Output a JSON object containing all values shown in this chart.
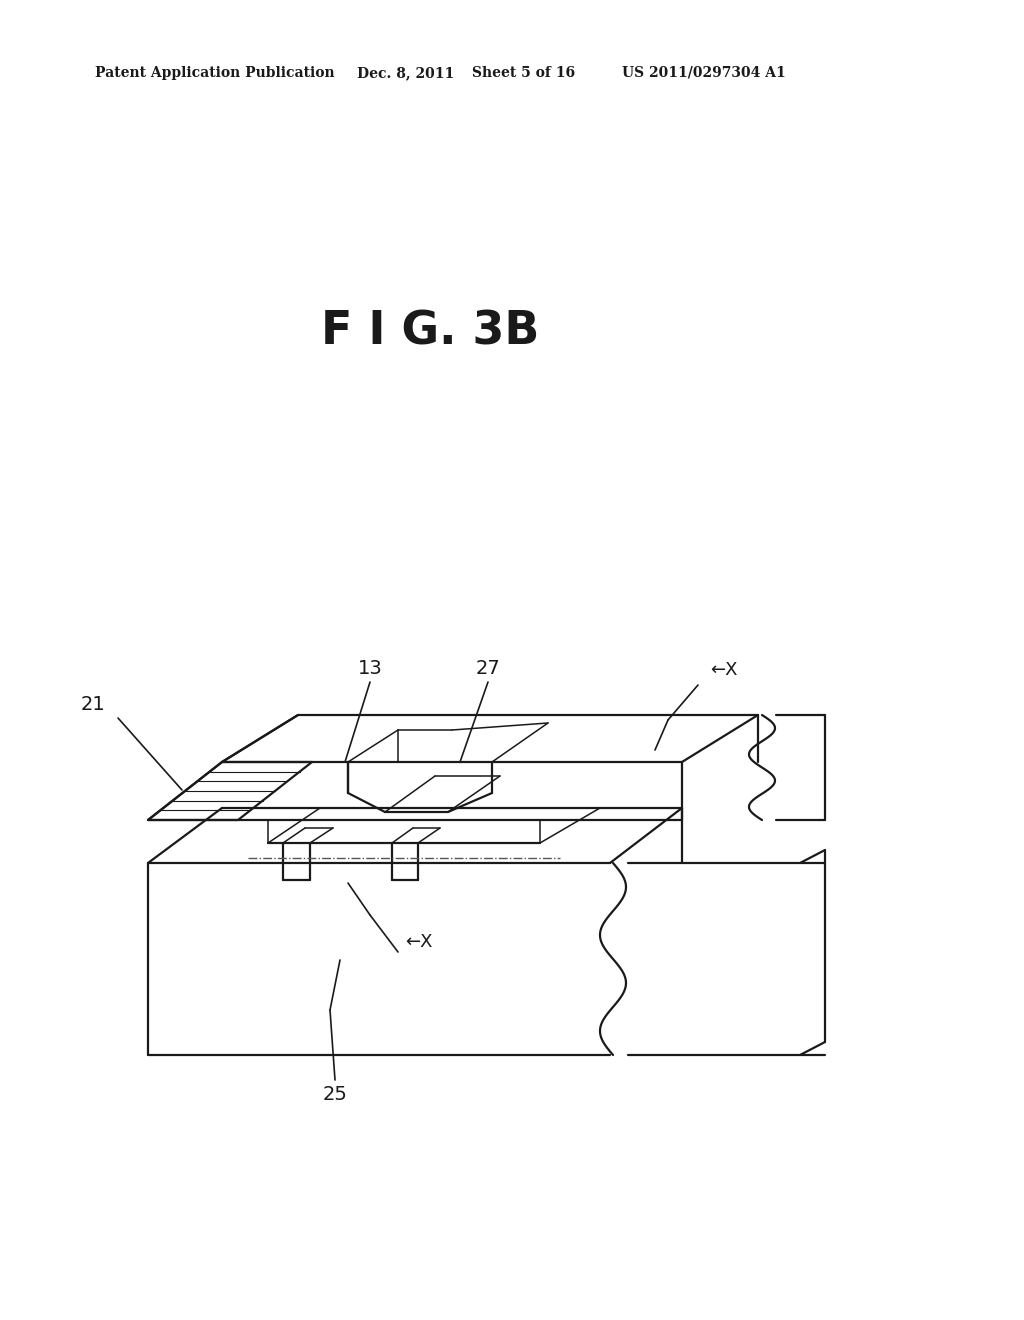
{
  "bg_color": "#ffffff",
  "lc": "#1a1a1a",
  "lw_main": 1.6,
  "lw_thin": 1.1,
  "header_left": "Patent Application Publication",
  "header_mid1": "Dec. 8, 2011",
  "header_mid2": "Sheet 5 of 16",
  "header_right": "US 2011/0297304 A1",
  "fig_title": "F I G. 3B"
}
